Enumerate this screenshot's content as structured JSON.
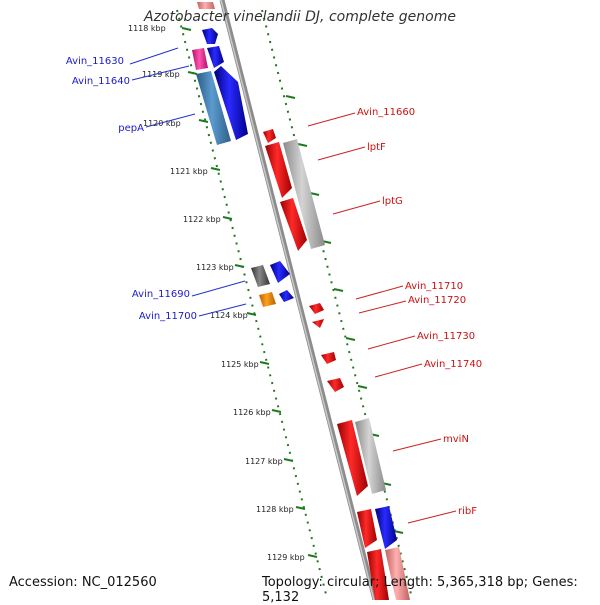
{
  "header": {
    "title": "Azotobacter vinelandii DJ, complete genome"
  },
  "footer": {
    "accession": "Accession: NC_012560",
    "topology": "Topology: circular; Length: 5,365,318 bp; Genes: 5,132"
  },
  "colors": {
    "backbone": "#8c8c8c",
    "ruler_tick": "#1f7a1f",
    "forward_label": "#1a1acc",
    "reverse_label": "#cc1111",
    "label_line_forward": "#2233cc",
    "label_line_reverse": "#cc2222"
  },
  "ruler": {
    "ticks": [
      {
        "label": "1118 kbp"
      },
      {
        "label": "1119 kbp"
      },
      {
        "label": "1120 kbp"
      },
      {
        "label": "1121 kbp"
      },
      {
        "label": "1122 kbp"
      },
      {
        "label": "1123 kbp"
      },
      {
        "label": "1124 kbp"
      },
      {
        "label": "1125 kbp"
      },
      {
        "label": "1126 kbp"
      },
      {
        "label": "1127 kbp"
      },
      {
        "label": "1128 kbp"
      },
      {
        "label": "1129 kbp"
      }
    ]
  },
  "genes": {
    "forward_labels": [
      {
        "name": "Avin_11630"
      },
      {
        "name": "Avin_11640"
      },
      {
        "name": "pepA"
      },
      {
        "name": "Avin_11690"
      },
      {
        "name": "Avin_11700"
      }
    ],
    "reverse_labels": [
      {
        "name": "Avin_11660"
      },
      {
        "name": "lptF"
      },
      {
        "name": "lptG"
      },
      {
        "name": "Avin_11710"
      },
      {
        "name": "Avin_11720"
      },
      {
        "name": "Avin_11730"
      },
      {
        "name": "Avin_11740"
      },
      {
        "name": "mviN"
      },
      {
        "name": "ribF"
      }
    ]
  }
}
